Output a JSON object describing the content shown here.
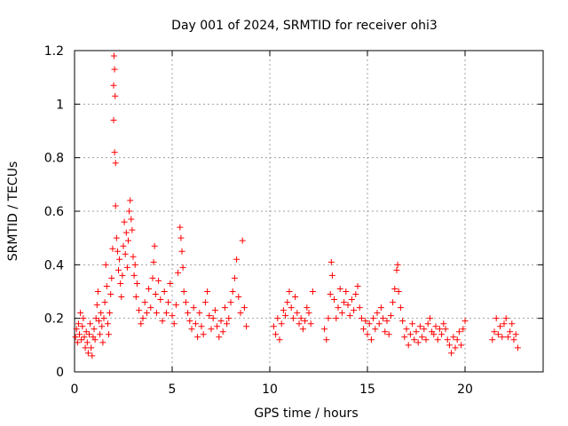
{
  "chart_data": {
    "type": "scatter",
    "title": "Day 001 of 2024, SRMTID for receiver ohi3",
    "xlabel": "GPS time / hours",
    "ylabel": "SRMTID / TECUs",
    "xlim": [
      0,
      24
    ],
    "ylim": [
      0,
      1.2
    ],
    "x_ticks": [
      0,
      5,
      10,
      15,
      20
    ],
    "x_tick_labels": [
      "0",
      "5",
      "10",
      "15",
      "20"
    ],
    "y_ticks": [
      0,
      0.2,
      0.4,
      0.6,
      0.8,
      1.0,
      1.2
    ],
    "y_tick_labels": [
      "0",
      "0.2",
      "0.4",
      "0.6",
      "0.8",
      "1",
      "1.2"
    ],
    "grid": true,
    "marker": "plus",
    "color": "#ff0000",
    "series": [
      {
        "name": "SRMTID",
        "points": [
          [
            0.05,
            0.13
          ],
          [
            0.1,
            0.16
          ],
          [
            0.15,
            0.11
          ],
          [
            0.2,
            0.18
          ],
          [
            0.25,
            0.14
          ],
          [
            0.3,
            0.22
          ],
          [
            0.35,
            0.12
          ],
          [
            0.4,
            0.17
          ],
          [
            0.45,
            0.2
          ],
          [
            0.5,
            0.13
          ],
          [
            0.55,
            0.09
          ],
          [
            0.6,
            0.15
          ],
          [
            0.65,
            0.11
          ],
          [
            0.7,
            0.07
          ],
          [
            0.75,
            0.14
          ],
          [
            0.8,
            0.18
          ],
          [
            0.85,
            0.09
          ],
          [
            0.9,
            0.06
          ],
          [
            0.95,
            0.13
          ],
          [
            1.0,
            0.16
          ],
          [
            1.05,
            0.12
          ],
          [
            1.1,
            0.2
          ],
          [
            1.15,
            0.25
          ],
          [
            1.2,
            0.3
          ],
          [
            1.25,
            0.19
          ],
          [
            1.3,
            0.14
          ],
          [
            1.35,
            0.22
          ],
          [
            1.4,
            0.17
          ],
          [
            1.45,
            0.11
          ],
          [
            1.5,
            0.2
          ],
          [
            1.55,
            0.26
          ],
          [
            1.6,
            0.4
          ],
          [
            1.65,
            0.32
          ],
          [
            1.7,
            0.18
          ],
          [
            1.75,
            0.14
          ],
          [
            1.8,
            0.22
          ],
          [
            1.85,
            0.29
          ],
          [
            1.9,
            0.35
          ],
          [
            1.95,
            0.46
          ],
          [
            2.0,
            1.07
          ],
          [
            2.0,
            0.94
          ],
          [
            2.02,
            1.18
          ],
          [
            2.05,
            1.13
          ],
          [
            2.05,
            0.82
          ],
          [
            2.08,
            1.03
          ],
          [
            2.1,
            0.78
          ],
          [
            2.1,
            0.62
          ],
          [
            2.15,
            0.5
          ],
          [
            2.2,
            0.45
          ],
          [
            2.25,
            0.38
          ],
          [
            2.3,
            0.42
          ],
          [
            2.35,
            0.33
          ],
          [
            2.4,
            0.28
          ],
          [
            2.45,
            0.36
          ],
          [
            2.5,
            0.47
          ],
          [
            2.55,
            0.56
          ],
          [
            2.6,
            0.44
          ],
          [
            2.65,
            0.52
          ],
          [
            2.7,
            0.39
          ],
          [
            2.75,
            0.49
          ],
          [
            2.8,
            0.6
          ],
          [
            2.85,
            0.64
          ],
          [
            2.9,
            0.57
          ],
          [
            2.95,
            0.53
          ],
          [
            3.0,
            0.43
          ],
          [
            3.05,
            0.36
          ],
          [
            3.1,
            0.4
          ],
          [
            3.15,
            0.28
          ],
          [
            3.2,
            0.33
          ],
          [
            3.3,
            0.23
          ],
          [
            3.4,
            0.18
          ],
          [
            3.5,
            0.2
          ],
          [
            3.6,
            0.26
          ],
          [
            3.7,
            0.22
          ],
          [
            3.8,
            0.31
          ],
          [
            3.9,
            0.24
          ],
          [
            4.0,
            0.35
          ],
          [
            4.05,
            0.41
          ],
          [
            4.1,
            0.47
          ],
          [
            4.15,
            0.29
          ],
          [
            4.2,
            0.22
          ],
          [
            4.3,
            0.34
          ],
          [
            4.4,
            0.27
          ],
          [
            4.5,
            0.19
          ],
          [
            4.6,
            0.3
          ],
          [
            4.7,
            0.22
          ],
          [
            4.8,
            0.26
          ],
          [
            4.9,
            0.33
          ],
          [
            5.0,
            0.21
          ],
          [
            5.1,
            0.18
          ],
          [
            5.2,
            0.25
          ],
          [
            5.3,
            0.37
          ],
          [
            5.4,
            0.54
          ],
          [
            5.45,
            0.5
          ],
          [
            5.5,
            0.45
          ],
          [
            5.55,
            0.39
          ],
          [
            5.6,
            0.3
          ],
          [
            5.7,
            0.26
          ],
          [
            5.8,
            0.22
          ],
          [
            5.9,
            0.19
          ],
          [
            6.0,
            0.16
          ],
          [
            6.1,
            0.24
          ],
          [
            6.2,
            0.18
          ],
          [
            6.3,
            0.13
          ],
          [
            6.4,
            0.22
          ],
          [
            6.5,
            0.17
          ],
          [
            6.6,
            0.14
          ],
          [
            6.7,
            0.26
          ],
          [
            6.8,
            0.3
          ],
          [
            6.9,
            0.21
          ],
          [
            7.0,
            0.16
          ],
          [
            7.1,
            0.2
          ],
          [
            7.2,
            0.23
          ],
          [
            7.3,
            0.17
          ],
          [
            7.4,
            0.13
          ],
          [
            7.5,
            0.19
          ],
          [
            7.6,
            0.15
          ],
          [
            7.7,
            0.24
          ],
          [
            7.8,
            0.18
          ],
          [
            7.9,
            0.2
          ],
          [
            8.0,
            0.26
          ],
          [
            8.1,
            0.3
          ],
          [
            8.2,
            0.35
          ],
          [
            8.3,
            0.42
          ],
          [
            8.4,
            0.28
          ],
          [
            8.5,
            0.22
          ],
          [
            8.6,
            0.49
          ],
          [
            8.7,
            0.24
          ],
          [
            8.8,
            0.17
          ],
          [
            10.2,
            0.17
          ],
          [
            10.3,
            0.14
          ],
          [
            10.4,
            0.2
          ],
          [
            10.5,
            0.12
          ],
          [
            10.6,
            0.18
          ],
          [
            10.7,
            0.23
          ],
          [
            10.8,
            0.21
          ],
          [
            10.9,
            0.26
          ],
          [
            11.0,
            0.3
          ],
          [
            11.1,
            0.24
          ],
          [
            11.2,
            0.2
          ],
          [
            11.3,
            0.28
          ],
          [
            11.4,
            0.22
          ],
          [
            11.5,
            0.18
          ],
          [
            11.6,
            0.2
          ],
          [
            11.7,
            0.16
          ],
          [
            11.8,
            0.19
          ],
          [
            11.9,
            0.24
          ],
          [
            12.0,
            0.22
          ],
          [
            12.1,
            0.18
          ],
          [
            12.2,
            0.3
          ],
          [
            12.8,
            0.16
          ],
          [
            12.9,
            0.12
          ],
          [
            13.0,
            0.2
          ],
          [
            13.1,
            0.29
          ],
          [
            13.15,
            0.41
          ],
          [
            13.2,
            0.36
          ],
          [
            13.3,
            0.27
          ],
          [
            13.4,
            0.2
          ],
          [
            13.5,
            0.24
          ],
          [
            13.6,
            0.31
          ],
          [
            13.7,
            0.22
          ],
          [
            13.8,
            0.26
          ],
          [
            13.9,
            0.3
          ],
          [
            14.0,
            0.25
          ],
          [
            14.1,
            0.21
          ],
          [
            14.2,
            0.27
          ],
          [
            14.3,
            0.23
          ],
          [
            14.4,
            0.29
          ],
          [
            14.5,
            0.32
          ],
          [
            14.6,
            0.24
          ],
          [
            14.7,
            0.2
          ],
          [
            14.8,
            0.16
          ],
          [
            14.9,
            0.19
          ],
          [
            15.0,
            0.14
          ],
          [
            15.1,
            0.18
          ],
          [
            15.2,
            0.12
          ],
          [
            15.3,
            0.2
          ],
          [
            15.4,
            0.16
          ],
          [
            15.5,
            0.22
          ],
          [
            15.6,
            0.18
          ],
          [
            15.7,
            0.24
          ],
          [
            15.8,
            0.2
          ],
          [
            15.9,
            0.15
          ],
          [
            16.0,
            0.19
          ],
          [
            16.1,
            0.14
          ],
          [
            16.2,
            0.21
          ],
          [
            16.3,
            0.26
          ],
          [
            16.4,
            0.31
          ],
          [
            16.5,
            0.38
          ],
          [
            16.55,
            0.4
          ],
          [
            16.6,
            0.3
          ],
          [
            16.7,
            0.24
          ],
          [
            16.8,
            0.19
          ],
          [
            16.9,
            0.13
          ],
          [
            17.0,
            0.16
          ],
          [
            17.1,
            0.1
          ],
          [
            17.2,
            0.14
          ],
          [
            17.3,
            0.18
          ],
          [
            17.4,
            0.12
          ],
          [
            17.5,
            0.15
          ],
          [
            17.6,
            0.11
          ],
          [
            17.7,
            0.17
          ],
          [
            17.8,
            0.13
          ],
          [
            17.9,
            0.16
          ],
          [
            18.0,
            0.12
          ],
          [
            18.1,
            0.18
          ],
          [
            18.2,
            0.2
          ],
          [
            18.3,
            0.15
          ],
          [
            18.4,
            0.14
          ],
          [
            18.5,
            0.17
          ],
          [
            18.6,
            0.12
          ],
          [
            18.7,
            0.16
          ],
          [
            18.8,
            0.14
          ],
          [
            18.9,
            0.18
          ],
          [
            19.0,
            0.16
          ],
          [
            19.1,
            0.12
          ],
          [
            19.2,
            0.1
          ],
          [
            19.3,
            0.07
          ],
          [
            19.4,
            0.13
          ],
          [
            19.5,
            0.09
          ],
          [
            19.6,
            0.12
          ],
          [
            19.7,
            0.15
          ],
          [
            19.8,
            0.1
          ],
          [
            19.9,
            0.16
          ],
          [
            20.0,
            0.19
          ],
          [
            21.4,
            0.12
          ],
          [
            21.5,
            0.15
          ],
          [
            21.6,
            0.2
          ],
          [
            21.7,
            0.14
          ],
          [
            21.8,
            0.17
          ],
          [
            21.9,
            0.13
          ],
          [
            22.0,
            0.18
          ],
          [
            22.1,
            0.2
          ],
          [
            22.2,
            0.13
          ],
          [
            22.3,
            0.15
          ],
          [
            22.4,
            0.18
          ],
          [
            22.5,
            0.12
          ],
          [
            22.6,
            0.14
          ],
          [
            22.7,
            0.09
          ]
        ]
      }
    ]
  }
}
